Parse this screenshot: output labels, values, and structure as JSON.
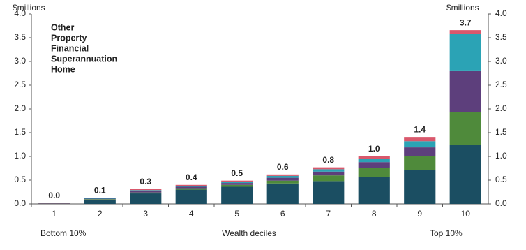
{
  "chart_data": {
    "type": "stacked-bar",
    "y_unit_left": "$millions",
    "y_unit_right": "$millions",
    "xlabel": "Wealth deciles",
    "x_note_left": "Bottom 10%",
    "x_note_right": "Top 10%",
    "categories": [
      "1",
      "2",
      "3",
      "4",
      "5",
      "6",
      "7",
      "8",
      "9",
      "10"
    ],
    "series": [
      {
        "name": "Home",
        "color": "#1b4e62",
        "values": [
          0.01,
          0.09,
          0.22,
          0.3,
          0.36,
          0.43,
          0.48,
          0.57,
          0.71,
          1.25
        ]
      },
      {
        "name": "Superannuation",
        "color": "#4f8a3b",
        "values": [
          0.0,
          0.01,
          0.02,
          0.03,
          0.04,
          0.06,
          0.12,
          0.19,
          0.3,
          0.68
        ]
      },
      {
        "name": "Financial",
        "color": "#5d3f7c",
        "values": [
          0.0,
          0.01,
          0.03,
          0.03,
          0.04,
          0.06,
          0.08,
          0.12,
          0.18,
          0.88
        ]
      },
      {
        "name": "Property",
        "color": "#2ba3b5",
        "values": [
          0.0,
          0.01,
          0.02,
          0.02,
          0.03,
          0.04,
          0.05,
          0.07,
          0.13,
          0.77
        ]
      },
      {
        "name": "Other",
        "color": "#d9586c",
        "values": [
          0.01,
          0.01,
          0.02,
          0.02,
          0.02,
          0.03,
          0.04,
          0.05,
          0.09,
          0.08
        ]
      }
    ],
    "totals": {
      "values": [
        0.02,
        0.13,
        0.31,
        0.4,
        0.49,
        0.62,
        0.77,
        1.0,
        1.41,
        3.66
      ],
      "value_labels": [
        "0.0",
        "0.1",
        "0.3",
        "0.4",
        "0.5",
        "0.6",
        "0.8",
        "1.0",
        "1.4",
        "3.7"
      ]
    },
    "ylim": [
      0,
      4
    ],
    "yticks": [
      {
        "value": 0,
        "label": "0.0"
      },
      {
        "value": 0.5,
        "label": "0.5"
      },
      {
        "value": 1,
        "label": "1.0"
      },
      {
        "value": 1.5,
        "label": "1.5"
      },
      {
        "value": 2,
        "label": "2.0"
      },
      {
        "value": 2.5,
        "label": "2.5"
      },
      {
        "value": 3,
        "label": "3.0"
      },
      {
        "value": 3.5,
        "label": "3.5"
      },
      {
        "value": 4,
        "label": "4.0"
      }
    ],
    "y2lim": [
      0,
      4
    ],
    "y2ticks": [
      {
        "value": 0,
        "label": "0.0"
      },
      {
        "value": 0.5,
        "label": "0.5"
      },
      {
        "value": 1,
        "label": "1.0"
      },
      {
        "value": 1.5,
        "label": "1.5"
      },
      {
        "value": 2,
        "label": "2.0"
      },
      {
        "value": 2.5,
        "label": "2.5"
      },
      {
        "value": 3,
        "label": "3.0"
      },
      {
        "value": 3.5,
        "label": "3.5"
      },
      {
        "value": 4,
        "label": "4.0"
      }
    ],
    "grid": false,
    "legend": "top-left"
  }
}
